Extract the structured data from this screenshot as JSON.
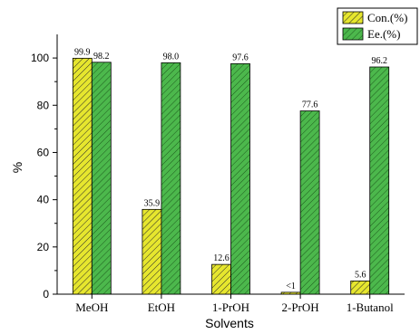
{
  "chart_data": {
    "type": "bar",
    "categories": [
      "MeOH",
      "EtOH",
      "1-PrOH",
      "2-PrOH",
      "1-Butanol"
    ],
    "series": [
      {
        "name": "Con.(%)",
        "values": [
          99.9,
          35.9,
          12.6,
          0.8,
          5.6
        ],
        "labels": [
          "99.9",
          "35.9",
          "12.6",
          "<1",
          "5.6"
        ],
        "color": "#e6e62e",
        "pattern": "hatch"
      },
      {
        "name": "Ee.(%)",
        "values": [
          98.2,
          98.0,
          97.6,
          77.6,
          96.2
        ],
        "labels": [
          "98.2",
          "98.0",
          "97.6",
          "77.6",
          "96.2"
        ],
        "color": "#4cb84c",
        "pattern": "hatch"
      }
    ],
    "xlabel": "Solvents",
    "ylabel": "%",
    "ylim": [
      0,
      110
    ],
    "yticks": [
      0,
      20,
      40,
      60,
      80,
      100
    ],
    "legend_position": "top-right",
    "grid": false
  }
}
